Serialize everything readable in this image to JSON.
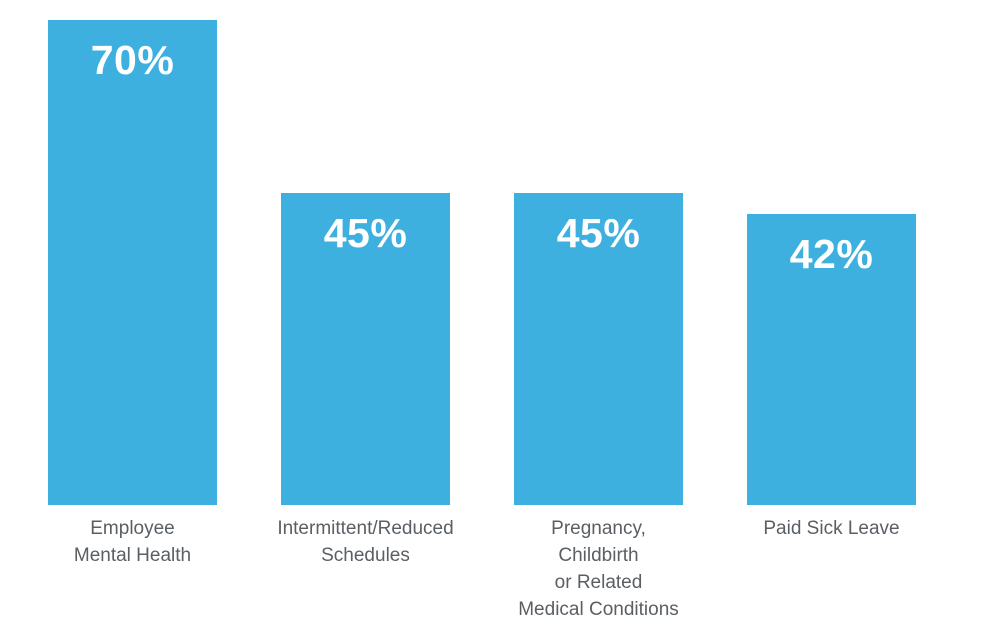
{
  "chart_data": {
    "type": "bar",
    "title": "",
    "xlabel": "",
    "ylabel": "",
    "ylim": [
      0,
      70
    ],
    "grid": false,
    "legend": false,
    "background_color": "#FFFFFF",
    "bar_color": "#3EB0E0",
    "value_label_color": "#FFFFFF",
    "category_label_color": "#5A5F64",
    "categories": [
      "Employee Mental Health",
      "Intermittent/Reduced Schedules",
      "Pregnancy, Childbirth or Related Medical Conditions",
      "Paid Sick Leave"
    ],
    "category_lines": [
      [
        "Employee",
        "Mental Health"
      ],
      [
        "Intermittent/Reduced",
        "Schedules"
      ],
      [
        "Pregnancy,",
        "Childbirth",
        "or Related",
        "Medical Conditions"
      ],
      [
        "Paid Sick Leave"
      ]
    ],
    "values": [
      70,
      45,
      45,
      42
    ],
    "value_labels": [
      "70%",
      "45%",
      "45%",
      "42%"
    ]
  }
}
